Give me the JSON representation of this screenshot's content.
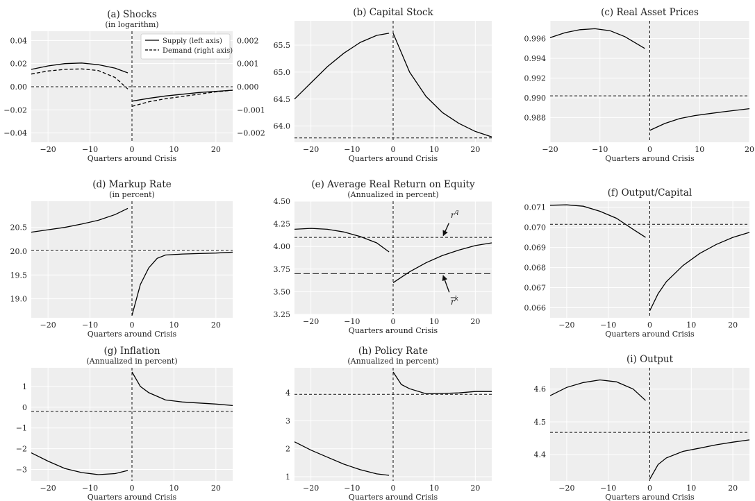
{
  "chart_data": [
    {
      "id": "a",
      "type": "line",
      "title": "(a) Shocks",
      "subtitle": "(in logarithm)",
      "xlabel": "Quarters around Crisis",
      "xlim": [
        -24,
        24
      ],
      "ylim": [
        -0.048,
        0.048
      ],
      "xticks": [
        -20,
        -10,
        0,
        10,
        20
      ],
      "xtick_labels": [
        "−20",
        "−10",
        "0",
        "10",
        "20"
      ],
      "yticks": [
        -0.04,
        -0.02,
        0.0,
        0.02,
        0.04
      ],
      "ytick_labels": [
        "−0.04",
        "−0.02",
        "0.00",
        "0.02",
        "0.04"
      ],
      "y2lim": [
        -0.0024,
        0.0024
      ],
      "y2ticks": [
        -0.002,
        -0.001,
        0.0,
        0.001,
        0.002
      ],
      "y2tick_labels": [
        "−0.002",
        "−0.001",
        "0.000",
        "0.001",
        "0.002"
      ],
      "vline": 0,
      "hline": 0,
      "legend": {
        "placement": "top-right",
        "entries": [
          "Supply (left axis)",
          "Demand (right axis)"
        ]
      },
      "series": [
        {
          "name": "Supply (left axis)",
          "axis": "left",
          "style": "solid",
          "pre": {
            "x": [
              -24,
              -20,
              -16,
              -12,
              -8,
              -4,
              -1
            ],
            "y": [
              0.015,
              0.018,
              0.02,
              0.0205,
              0.019,
              0.016,
              0.012
            ]
          },
          "post": {
            "x": [
              0,
              4,
              8,
              12,
              16,
              20,
              24
            ],
            "y": [
              -0.0125,
              -0.01,
              -0.008,
              -0.0065,
              -0.005,
              -0.004,
              -0.003
            ]
          }
        },
        {
          "name": "Demand (right axis)",
          "axis": "right",
          "style": "dashed",
          "pre": {
            "x": [
              -24,
              -20,
              -16,
              -12,
              -8,
              -4,
              -1
            ],
            "y": [
              0.00055,
              0.00068,
              0.00075,
              0.00077,
              0.0007,
              0.0004,
              -0.0001
            ]
          },
          "post": {
            "x": [
              0,
              4,
              8,
              12,
              16,
              20,
              24
            ],
            "y": [
              -0.00085,
              -0.00065,
              -0.00052,
              -0.00042,
              -0.00032,
              -0.00022,
              -0.00015
            ]
          }
        }
      ]
    },
    {
      "id": "b",
      "type": "line",
      "title": "(b) Capital Stock",
      "subtitle": "",
      "xlabel": "Quarters around Crisis",
      "xlim": [
        -24,
        24
      ],
      "ylim": [
        63.7,
        65.95
      ],
      "xticks": [
        -20,
        -10,
        0,
        10,
        20
      ],
      "xtick_labels": [
        "−20",
        "−10",
        "0",
        "10",
        "20"
      ],
      "yticks": [
        64.0,
        64.5,
        65.0,
        65.5
      ],
      "ytick_labels": [
        "64.0",
        "64.5",
        "65.0",
        "65.5"
      ],
      "vline": 0,
      "hline": 63.78,
      "series": [
        {
          "name": "",
          "style": "solid",
          "pre": {
            "x": [
              -24,
              -20,
              -16,
              -12,
              -8,
              -4,
              -1
            ],
            "y": [
              64.5,
              64.8,
              65.1,
              65.35,
              65.55,
              65.68,
              65.72
            ]
          },
          "post": {
            "x": [
              0,
              4,
              8,
              12,
              16,
              20,
              24
            ],
            "y": [
              65.72,
              65.0,
              64.55,
              64.25,
              64.05,
              63.9,
              63.8
            ]
          }
        }
      ]
    },
    {
      "id": "c",
      "type": "line",
      "title": "(c) Real Asset Prices",
      "subtitle": "",
      "xlabel": "Quarters around Crisis",
      "xlim": [
        -20,
        20
      ],
      "ylim": [
        0.9855,
        0.9978
      ],
      "xticks": [
        -20,
        -10,
        0,
        10,
        20
      ],
      "xtick_labels": [
        "−20",
        "−10",
        "0",
        "10",
        "20"
      ],
      "yticks": [
        0.988,
        0.99,
        0.992,
        0.994,
        0.996
      ],
      "ytick_labels": [
        "0.988",
        "0.990",
        "0.992",
        "0.994",
        "0.996"
      ],
      "vline": 0,
      "hline": 0.9902,
      "series": [
        {
          "name": "",
          "style": "solid",
          "pre": {
            "x": [
              -20,
              -17,
              -14,
              -11,
              -8,
              -5,
              -1
            ],
            "y": [
              0.9961,
              0.9966,
              0.9969,
              0.997,
              0.9968,
              0.9962,
              0.995
            ]
          },
          "post": {
            "x": [
              0,
              3,
              6,
              9,
              12,
              15,
              20
            ],
            "y": [
              0.9867,
              0.9874,
              0.9879,
              0.9882,
              0.9884,
              0.9886,
              0.9889
            ]
          }
        }
      ]
    },
    {
      "id": "d",
      "type": "line",
      "title": "(d) Markup Rate",
      "subtitle": "(in percent)",
      "xlabel": "Quarters around Crisis",
      "xlim": [
        -24,
        24
      ],
      "ylim": [
        18.6,
        21.05
      ],
      "xticks": [
        -20,
        -10,
        0,
        10,
        20
      ],
      "xtick_labels": [
        "−20",
        "−10",
        "0",
        "10",
        "20"
      ],
      "yticks": [
        19.0,
        19.5,
        20.0,
        20.5
      ],
      "ytick_labels": [
        "19.0",
        "19.5",
        "20.0",
        "20.5"
      ],
      "vline": 0,
      "hline": 20.02,
      "series": [
        {
          "name": "",
          "style": "solid",
          "pre": {
            "x": [
              -24,
              -20,
              -16,
              -12,
              -8,
              -4,
              -1
            ],
            "y": [
              20.4,
              20.45,
              20.5,
              20.57,
              20.65,
              20.77,
              20.9
            ]
          },
          "post": {
            "x": [
              0,
              2,
              4,
              6,
              8,
              12,
              16,
              20,
              24
            ],
            "y": [
              18.65,
              19.3,
              19.65,
              19.85,
              19.92,
              19.94,
              19.95,
              19.96,
              19.98
            ]
          }
        }
      ]
    },
    {
      "id": "e",
      "type": "line",
      "title": "(e) Average Real Return on Equity",
      "subtitle": "(Annualized in percent)",
      "xlabel": "Quarters around Crisis",
      "xlim": [
        -24,
        24
      ],
      "ylim": [
        3.25,
        4.5
      ],
      "xticks": [
        -20,
        -10,
        0,
        10,
        20
      ],
      "xtick_labels": [
        "−20",
        "−10",
        "0",
        "10",
        "20"
      ],
      "yticks": [
        3.25,
        3.5,
        3.75,
        4.0,
        4.25,
        4.5
      ],
      "ytick_labels": [
        "3.25",
        "3.50",
        "3.75",
        "4.00",
        "4.25",
        "4.50"
      ],
      "vline": 0,
      "hlines": [
        {
          "y": 4.1,
          "style": "dashed"
        },
        {
          "y": 3.7,
          "style": "longdash"
        }
      ],
      "annotations": [
        {
          "text": "r",
          "sup": "q",
          "bar": false,
          "at": {
            "x": 12,
            "y": 4.1
          },
          "label_at": {
            "x": 14,
            "y": 4.3
          }
        },
        {
          "text": "r",
          "sup": "k",
          "bar": true,
          "at": {
            "x": 12,
            "y": 3.7
          },
          "label_at": {
            "x": 14,
            "y": 3.45
          }
        }
      ],
      "series": [
        {
          "name": "",
          "style": "solid",
          "pre": {
            "x": [
              -24,
              -20,
              -16,
              -12,
              -8,
              -4,
              -1
            ],
            "y": [
              4.19,
              4.2,
              4.19,
              4.16,
              4.11,
              4.04,
              3.94
            ]
          },
          "post": {
            "x": [
              0,
              4,
              8,
              12,
              16,
              20,
              24
            ],
            "y": [
              3.6,
              3.72,
              3.82,
              3.9,
              3.96,
              4.01,
              4.04
            ]
          }
        }
      ]
    },
    {
      "id": "f",
      "type": "line",
      "title": "(f) Output/Capital",
      "subtitle": "",
      "xlabel": "Quarters around Crisis",
      "xlim": [
        -24,
        24
      ],
      "ylim": [
        0.0655,
        0.0713
      ],
      "xticks": [
        -20,
        -10,
        0,
        10,
        20
      ],
      "xtick_labels": [
        "−20",
        "−10",
        "0",
        "10",
        "20"
      ],
      "yticks": [
        0.066,
        0.067,
        0.068,
        0.069,
        0.07,
        0.071
      ],
      "ytick_labels": [
        "0.066",
        "0.067",
        "0.068",
        "0.069",
        "0.070",
        "0.071"
      ],
      "vline": 0,
      "hline": 0.07015,
      "series": [
        {
          "name": "",
          "style": "solid",
          "pre": {
            "x": [
              -24,
              -20,
              -16,
              -12,
              -8,
              -4,
              -1
            ],
            "y": [
              0.0711,
              0.07112,
              0.07105,
              0.0708,
              0.07045,
              0.0699,
              0.0695
            ]
          },
          "post": {
            "x": [
              0,
              2,
              4,
              8,
              12,
              16,
              20,
              24
            ],
            "y": [
              0.06585,
              0.0667,
              0.0673,
              0.0681,
              0.0687,
              0.06915,
              0.0695,
              0.06975
            ]
          }
        }
      ]
    },
    {
      "id": "g",
      "type": "line",
      "title": "(g) Inflation",
      "subtitle": "(Annualized in percent)",
      "xlabel": "Quarters around Crisis",
      "xlim": [
        -24,
        24
      ],
      "ylim": [
        -3.55,
        1.9
      ],
      "xticks": [
        -20,
        -10,
        0,
        10,
        20
      ],
      "xtick_labels": [
        "−20",
        "−10",
        "0",
        "10",
        "20"
      ],
      "yticks": [
        -3,
        -2,
        -1,
        0,
        1
      ],
      "ytick_labels": [
        "−3",
        "−2",
        "−1",
        "0",
        "1"
      ],
      "vline": 0,
      "hline": -0.2,
      "series": [
        {
          "name": "",
          "style": "solid",
          "pre": {
            "x": [
              -24,
              -20,
              -16,
              -12,
              -8,
              -4,
              -1
            ],
            "y": [
              -2.2,
              -2.6,
              -2.95,
              -3.15,
              -3.25,
              -3.2,
              -3.05
            ]
          },
          "post": {
            "x": [
              0,
              2,
              4,
              8,
              12,
              16,
              20,
              24
            ],
            "y": [
              1.7,
              1.0,
              0.7,
              0.35,
              0.25,
              0.2,
              0.15,
              0.08
            ]
          }
        }
      ]
    },
    {
      "id": "h",
      "type": "line",
      "title": "(h) Policy Rate",
      "subtitle": "(Annualized in percent)",
      "xlabel": "Quarters around Crisis",
      "xlim": [
        -24,
        24
      ],
      "ylim": [
        0.85,
        4.9
      ],
      "xticks": [
        -20,
        -10,
        0,
        10,
        20
      ],
      "xtick_labels": [
        "−20",
        "−10",
        "0",
        "10",
        "20"
      ],
      "yticks": [
        1,
        2,
        3,
        4
      ],
      "ytick_labels": [
        "1",
        "2",
        "3",
        "4"
      ],
      "vline": 0,
      "hline": 3.95,
      "series": [
        {
          "name": "",
          "style": "solid",
          "pre": {
            "x": [
              -24,
              -20,
              -16,
              -12,
              -8,
              -4,
              -1
            ],
            "y": [
              2.25,
              1.95,
              1.7,
              1.45,
              1.25,
              1.1,
              1.05
            ]
          },
          "post": {
            "x": [
              0,
              2,
              4,
              8,
              12,
              16,
              20,
              24
            ],
            "y": [
              4.75,
              4.3,
              4.15,
              3.97,
              3.98,
              4.0,
              4.05,
              4.05
            ]
          }
        }
      ]
    },
    {
      "id": "i",
      "type": "line",
      "title": "(i) Output",
      "subtitle": "",
      "xlabel": "Quarters around Crisis",
      "xlim": [
        -24,
        24
      ],
      "ylim": [
        4.32,
        4.665
      ],
      "xticks": [
        -20,
        -10,
        0,
        10,
        20
      ],
      "xtick_labels": [
        "−20",
        "−10",
        "0",
        "10",
        "20"
      ],
      "yticks": [
        4.4,
        4.5,
        4.6
      ],
      "ytick_labels": [
        "4.4",
        "4.5",
        "4.6"
      ],
      "vline": 0,
      "hline": 4.468,
      "series": [
        {
          "name": "",
          "style": "solid",
          "pre": {
            "x": [
              -24,
              -20,
              -16,
              -12,
              -8,
              -4,
              -1
            ],
            "y": [
              4.58,
              4.605,
              4.62,
              4.628,
              4.622,
              4.6,
              4.565
            ]
          },
          "post": {
            "x": [
              0,
              2,
              4,
              8,
              12,
              16,
              20,
              24
            ],
            "y": [
              4.325,
              4.37,
              4.39,
              4.41,
              4.42,
              4.43,
              4.438,
              4.445
            ]
          }
        }
      ]
    }
  ]
}
